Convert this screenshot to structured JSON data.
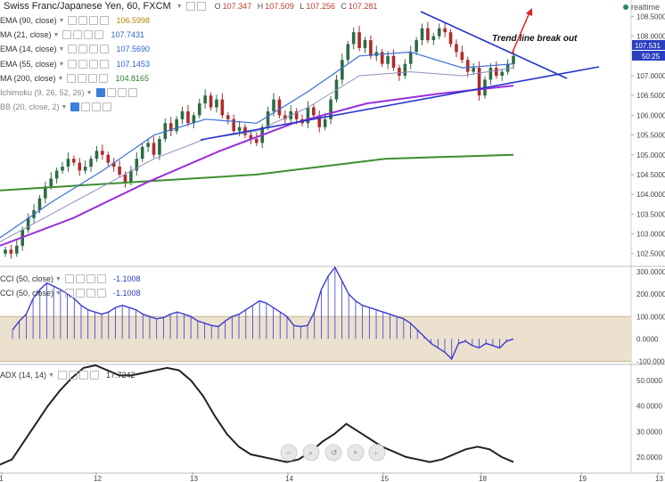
{
  "header": {
    "title": "Swiss Franc/Japanese Yen, 60, FXCM",
    "ohlc": [
      {
        "k": "O",
        "v": "107.347"
      },
      {
        "k": "H",
        "v": "107.509"
      },
      {
        "k": "L",
        "v": "107.256"
      },
      {
        "k": "C",
        "v": "107.281"
      }
    ],
    "realtime": "realtime"
  },
  "legend": [
    {
      "label": "EMA (90, close)",
      "value": "106.5998",
      "color": "#c8a000"
    },
    {
      "label": "MA (21, close)",
      "value": "107.7431",
      "color": "#2a66cc"
    },
    {
      "label": "EMA (14, close)",
      "value": "107.5690",
      "color": "#2a66cc"
    },
    {
      "label": "EMA (55, close)",
      "value": "107.1453",
      "color": "#2a66cc"
    },
    {
      "label": "MA (200, close)",
      "value": "104.8165",
      "color": "#2e7d32"
    },
    {
      "label": "Ichimoku (9, 26, 52, 26)",
      "value": "",
      "color": "#999999"
    },
    {
      "label": "BB (20, close, 2)",
      "value": "",
      "color": "#999999"
    }
  ],
  "annotation": "Trend line break out",
  "price_badges": [
    "107.531",
    "50:25"
  ],
  "cci_legend": [
    {
      "label": "CCI (50, close)",
      "value": "-1.1008"
    },
    {
      "label": "CCI (50, close)",
      "value": "-1.1008"
    }
  ],
  "adx_legend": {
    "label": "ADX (14, 14)",
    "value": "17.7242"
  },
  "colors": {
    "candle_up": "#2e6b45",
    "candle_down": "#b02a2a",
    "ma200": "#3e8e2e",
    "ema90": "#9b30d9",
    "ema_blue": "#3a6fd8",
    "ma_gray": "#8f8fc0",
    "trend": "#2233cc",
    "cci": "#3a3ad0",
    "cci_band": "#e9dcc6",
    "adx": "#222222",
    "arrow": "#e02020"
  },
  "chart_data": [
    {
      "type": "candlestick",
      "title": "Swiss Franc/Japanese Yen, 60, FXCM",
      "x_ticks": [
        "1",
        "12",
        "13",
        "14",
        "15",
        "18",
        "19",
        "13"
      ],
      "y_ticks": [
        "108.5000",
        "108.0000",
        "107.5000",
        "107.0000",
        "106.5000",
        "106.0000",
        "105.5000",
        "105.0000",
        "104.5000",
        "104.0000",
        "103.5000",
        "103.0000",
        "102.5000"
      ],
      "ylim": [
        102.2,
        108.6
      ],
      "close": [
        102.6,
        102.5,
        102.7,
        103.1,
        103.4,
        103.6,
        103.9,
        104.2,
        104.4,
        104.6,
        104.7,
        104.9,
        104.8,
        104.6,
        104.7,
        104.9,
        105.1,
        105.0,
        104.8,
        104.7,
        104.5,
        104.3,
        104.6,
        104.9,
        105.2,
        105.3,
        105.0,
        105.4,
        105.8,
        105.6,
        105.9,
        106.1,
        105.8,
        106.0,
        106.3,
        106.5,
        106.2,
        106.4,
        106.0,
        105.9,
        105.6,
        105.7,
        105.5,
        105.4,
        105.3,
        105.7,
        106.1,
        106.4,
        106.0,
        105.9,
        106.1,
        105.9,
        105.8,
        106.2,
        106.0,
        105.7,
        105.9,
        106.4,
        106.9,
        107.4,
        107.8,
        108.1,
        107.7,
        107.9,
        107.5,
        107.6,
        107.3,
        107.5,
        107.2,
        107.0,
        107.3,
        107.6,
        107.9,
        108.2,
        107.9,
        108.0,
        108.2,
        108.1,
        107.8,
        107.6,
        107.4,
        107.1,
        107.2,
        106.5,
        106.9,
        107.2,
        107.0,
        107.1,
        107.3,
        107.5
      ],
      "series": [
        {
          "name": "MA (200, close)",
          "y": [
            104.1,
            104.3,
            104.5,
            104.9,
            105.0
          ]
        },
        {
          "name": "EMA (90, close)",
          "y": [
            102.7,
            103.4,
            104.3,
            105.1,
            105.8,
            106.3,
            106.55,
            106.75
          ]
        },
        {
          "name": "MA (21, close)",
          "y": [
            102.9,
            103.8,
            104.6,
            105.5,
            105.9,
            105.8,
            106.6,
            107.5,
            107.6,
            107.2,
            107.3
          ]
        },
        {
          "name": "EMA (55, close)",
          "y": [
            102.8,
            103.5,
            104.2,
            104.9,
            105.4,
            105.6,
            106.2,
            107.0,
            107.1,
            107.0,
            107.2
          ]
        }
      ]
    },
    {
      "type": "bar",
      "title": "CCI (50, close)",
      "y_ticks": [
        "300.0000",
        "200.0000",
        "100.0000",
        "0.0000",
        "-100.0000"
      ],
      "ylim": [
        -110,
        320
      ],
      "band": [
        -100,
        100
      ],
      "values": [
        40,
        80,
        110,
        180,
        220,
        250,
        235,
        220,
        200,
        180,
        150,
        130,
        120,
        110,
        120,
        140,
        150,
        140,
        130,
        110,
        100,
        90,
        95,
        110,
        120,
        110,
        100,
        80,
        70,
        60,
        55,
        80,
        100,
        110,
        130,
        150,
        170,
        160,
        140,
        120,
        100,
        60,
        55,
        60,
        120,
        220,
        280,
        320,
        260,
        200,
        170,
        150,
        140,
        130,
        120,
        110,
        100,
        90,
        70,
        40,
        10,
        -20,
        -40,
        -60,
        -90,
        -20,
        -10,
        -30,
        -40,
        -20,
        -30,
        -40,
        -10,
        0
      ]
    },
    {
      "type": "line",
      "title": "ADX (14, 14)",
      "y_ticks": [
        "50.0000",
        "40.0000",
        "30.0000",
        "20.0000"
      ],
      "ylim": [
        14,
        56
      ],
      "values": [
        17,
        19,
        26,
        33,
        40,
        46,
        51,
        55,
        56,
        54,
        52,
        52,
        53,
        54,
        55,
        54,
        50,
        44,
        36,
        29,
        24,
        21,
        20,
        19,
        18,
        19,
        22,
        26,
        29,
        33,
        30,
        27,
        24,
        22,
        20,
        19,
        18,
        19,
        21,
        23,
        24,
        23,
        20,
        18
      ]
    }
  ]
}
